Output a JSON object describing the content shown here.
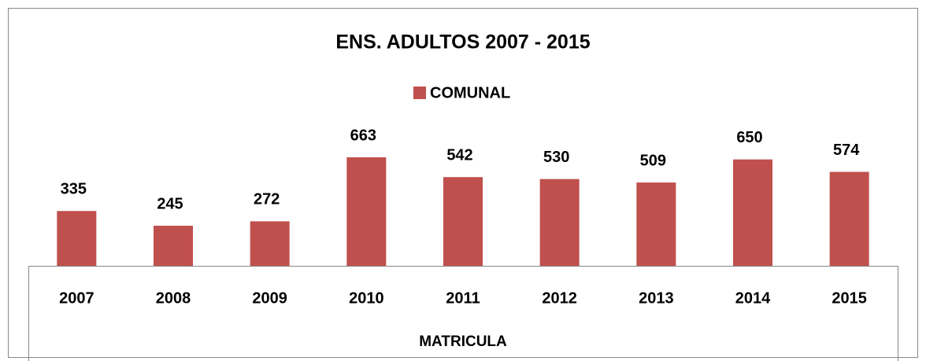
{
  "chart_data": {
    "type": "bar",
    "title": "ENS. ADULTOS 2007 - 2015",
    "x_label": "MATRICULA",
    "categories": [
      "2007",
      "2008",
      "2009",
      "2010",
      "2011",
      "2012",
      "2013",
      "2014",
      "2015"
    ],
    "series": [
      {
        "name": "COMUNAL",
        "color": "#c0504d",
        "values": [
          335,
          245,
          272,
          663,
          542,
          530,
          509,
          650,
          574
        ]
      }
    ],
    "data_labels": true,
    "legend": "top"
  }
}
